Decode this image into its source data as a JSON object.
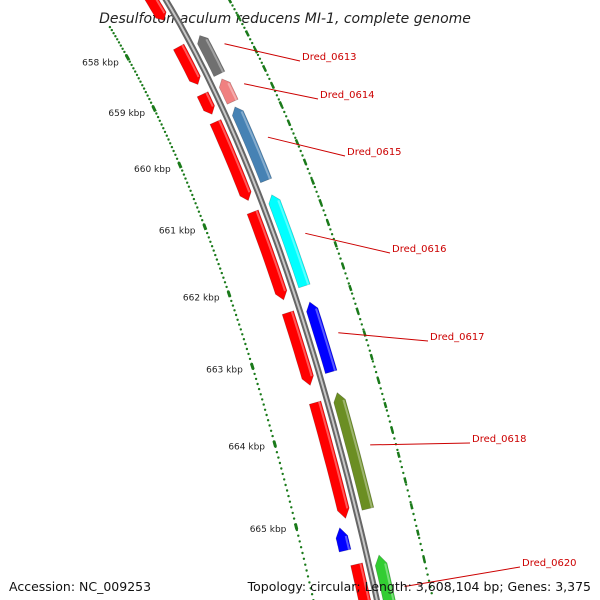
{
  "title": "Desulfotomaculum reducens MI-1, complete genome",
  "footer": {
    "accession": "Accession: NC_009253",
    "topology": "Topology: circular; Length: 3,608,104 bp; Genes: 3,375"
  },
  "kbp_labels": [
    "658 kbp",
    "659 kbp",
    "660 kbp",
    "661 kbp",
    "662 kbp",
    "663 kbp",
    "664 kbp",
    "665 kbp"
  ],
  "gene_labels": [
    "Dred_0613",
    "Dred_0614",
    "Dred_0615",
    "Dred_0616",
    "Dred_0617",
    "Dred_0618",
    "Dred_0620"
  ],
  "colors": {
    "forward_strand_gene": "#ff0000",
    "reverse_strand_gray": "#707070",
    "reverse_strand_pink": "#f08080",
    "reverse_strand_steelblue": "#4682b4",
    "reverse_strand_cyan": "#00ffff",
    "reverse_strand_blue": "#0000ff",
    "reverse_strand_olive": "#6b8e23",
    "reverse_strand_green": "#32cd32",
    "backbone": "#808080",
    "tick_marks": "#1a7a1a",
    "label_lines": "#cc0000"
  }
}
